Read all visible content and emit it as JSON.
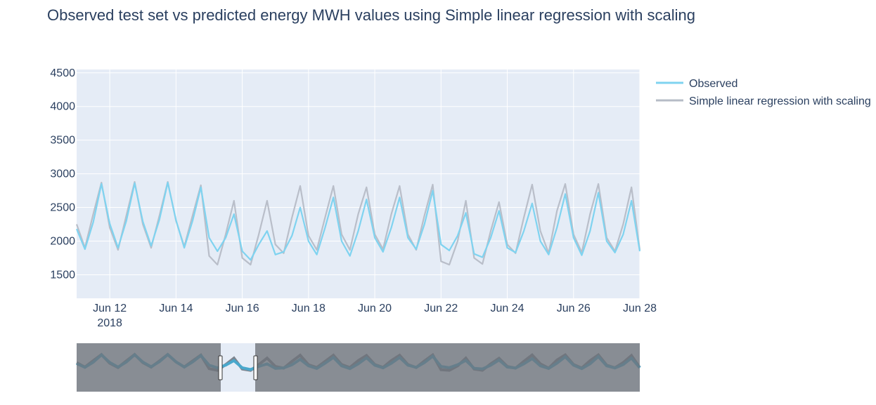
{
  "chart_data": {
    "type": "line",
    "title": "Observed test set vs predicted energy MWH values using Simple linear regression with scaling",
    "xlabel": "",
    "ylabel": "",
    "x_range": [
      "2018-06-11 00:00",
      "2018-06-28 00:00"
    ],
    "ylim": [
      1150,
      4550
    ],
    "y_ticks": [
      1500,
      2000,
      2500,
      3000,
      3500,
      4000,
      4500
    ],
    "x_ticks": [
      {
        "date": "2018-06-12",
        "label": "Jun 12",
        "sublabel": "2018"
      },
      {
        "date": "2018-06-14",
        "label": "Jun 14",
        "sublabel": ""
      },
      {
        "date": "2018-06-16",
        "label": "Jun 16",
        "sublabel": ""
      },
      {
        "date": "2018-06-18",
        "label": "Jun 18",
        "sublabel": ""
      },
      {
        "date": "2018-06-20",
        "label": "Jun 20",
        "sublabel": ""
      },
      {
        "date": "2018-06-22",
        "label": "Jun 22",
        "sublabel": ""
      },
      {
        "date": "2018-06-24",
        "label": "Jun 24",
        "sublabel": ""
      },
      {
        "date": "2018-06-26",
        "label": "Jun 26",
        "sublabel": ""
      },
      {
        "date": "2018-06-28",
        "label": "Jun 28",
        "sublabel": ""
      }
    ],
    "grid": true,
    "legend_position": "top-right",
    "rangeslider": true,
    "series": [
      {
        "name": "Observed",
        "color": "#7fd3f0",
        "x": [
          "2018-06-11 00:00",
          "2018-06-11 06:00",
          "2018-06-11 12:00",
          "2018-06-11 18:00",
          "2018-06-12 00:00",
          "2018-06-12 06:00",
          "2018-06-12 12:00",
          "2018-06-12 18:00",
          "2018-06-13 00:00",
          "2018-06-13 06:00",
          "2018-06-13 12:00",
          "2018-06-13 18:00",
          "2018-06-14 00:00",
          "2018-06-14 06:00",
          "2018-06-14 12:00",
          "2018-06-14 18:00",
          "2018-06-15 00:00",
          "2018-06-15 06:00",
          "2018-06-15 12:00",
          "2018-06-15 18:00",
          "2018-06-16 00:00",
          "2018-06-16 06:00",
          "2018-06-16 12:00",
          "2018-06-16 18:00",
          "2018-06-17 00:00",
          "2018-06-17 06:00",
          "2018-06-17 12:00",
          "2018-06-17 18:00",
          "2018-06-18 00:00",
          "2018-06-18 06:00",
          "2018-06-18 12:00",
          "2018-06-18 18:00",
          "2018-06-19 00:00",
          "2018-06-19 06:00",
          "2018-06-19 12:00",
          "2018-06-19 18:00",
          "2018-06-20 00:00",
          "2018-06-20 06:00",
          "2018-06-20 12:00",
          "2018-06-20 18:00",
          "2018-06-21 00:00",
          "2018-06-21 06:00",
          "2018-06-21 12:00",
          "2018-06-21 18:00",
          "2018-06-22 00:00",
          "2018-06-22 06:00",
          "2018-06-22 12:00",
          "2018-06-22 18:00",
          "2018-06-23 00:00",
          "2018-06-23 06:00",
          "2018-06-23 12:00",
          "2018-06-23 18:00",
          "2018-06-24 00:00",
          "2018-06-24 06:00",
          "2018-06-24 12:00",
          "2018-06-24 18:00",
          "2018-06-25 00:00",
          "2018-06-25 06:00",
          "2018-06-25 12:00",
          "2018-06-25 18:00",
          "2018-06-26 00:00",
          "2018-06-26 06:00",
          "2018-06-26 12:00",
          "2018-06-26 18:00",
          "2018-06-27 00:00",
          "2018-06-27 06:00",
          "2018-06-27 12:00",
          "2018-06-27 18:00",
          "2018-06-28 00:00"
        ],
        "values": [
          2180,
          1880,
          2280,
          2850,
          2260,
          1900,
          2300,
          2860,
          2290,
          1930,
          2320,
          2870,
          2310,
          1900,
          2300,
          2800,
          2050,
          1850,
          2050,
          2400,
          1850,
          1720,
          1950,
          2150,
          1800,
          1840,
          2080,
          2500,
          2000,
          1800,
          2200,
          2650,
          2000,
          1780,
          2150,
          2620,
          2050,
          1840,
          2200,
          2650,
          2050,
          1880,
          2250,
          2750,
          1950,
          1860,
          2080,
          2420,
          1810,
          1760,
          2050,
          2450,
          1900,
          1830,
          2150,
          2560,
          2000,
          1800,
          2200,
          2700,
          2050,
          1790,
          2150,
          2720,
          2000,
          1830,
          2100,
          2600,
          1850
        ]
      },
      {
        "name": "Simple linear regression with scaling",
        "color": "#b6bcc6",
        "x": [
          "2018-06-11 00:00",
          "2018-06-11 06:00",
          "2018-06-11 12:00",
          "2018-06-11 18:00",
          "2018-06-12 00:00",
          "2018-06-12 06:00",
          "2018-06-12 12:00",
          "2018-06-12 18:00",
          "2018-06-13 00:00",
          "2018-06-13 06:00",
          "2018-06-13 12:00",
          "2018-06-13 18:00",
          "2018-06-14 00:00",
          "2018-06-14 06:00",
          "2018-06-14 12:00",
          "2018-06-14 18:00",
          "2018-06-15 00:00",
          "2018-06-15 06:00",
          "2018-06-15 12:00",
          "2018-06-15 18:00",
          "2018-06-16 00:00",
          "2018-06-16 06:00",
          "2018-06-16 12:00",
          "2018-06-16 18:00",
          "2018-06-17 00:00",
          "2018-06-17 06:00",
          "2018-06-17 12:00",
          "2018-06-17 18:00",
          "2018-06-18 00:00",
          "2018-06-18 06:00",
          "2018-06-18 12:00",
          "2018-06-18 18:00",
          "2018-06-19 00:00",
          "2018-06-19 06:00",
          "2018-06-19 12:00",
          "2018-06-19 18:00",
          "2018-06-20 00:00",
          "2018-06-20 06:00",
          "2018-06-20 12:00",
          "2018-06-20 18:00",
          "2018-06-21 00:00",
          "2018-06-21 06:00",
          "2018-06-21 12:00",
          "2018-06-21 18:00",
          "2018-06-22 00:00",
          "2018-06-22 06:00",
          "2018-06-22 12:00",
          "2018-06-22 18:00",
          "2018-06-23 00:00",
          "2018-06-23 06:00",
          "2018-06-23 12:00",
          "2018-06-23 18:00",
          "2018-06-24 00:00",
          "2018-06-24 06:00",
          "2018-06-24 12:00",
          "2018-06-24 18:00",
          "2018-06-25 00:00",
          "2018-06-25 06:00",
          "2018-06-25 12:00",
          "2018-06-25 18:00",
          "2018-06-26 00:00",
          "2018-06-26 06:00",
          "2018-06-26 12:00",
          "2018-06-26 18:00",
          "2018-06-27 00:00",
          "2018-06-27 06:00",
          "2018-06-27 12:00",
          "2018-06-27 18:00",
          "2018-06-28 00:00"
        ],
        "values": [
          2250,
          1900,
          2400,
          2870,
          2200,
          1870,
          2380,
          2880,
          2250,
          1900,
          2380,
          2880,
          2300,
          1920,
          2380,
          2830,
          1780,
          1650,
          2100,
          2600,
          1750,
          1650,
          2100,
          2600,
          1950,
          1820,
          2350,
          2820,
          2080,
          1870,
          2350,
          2820,
          2100,
          1870,
          2400,
          2800,
          2100,
          1880,
          2400,
          2820,
          2100,
          1870,
          2380,
          2840,
          1700,
          1650,
          2000,
          2600,
          1750,
          1660,
          2150,
          2580,
          1950,
          1820,
          2350,
          2840,
          2150,
          1820,
          2450,
          2850,
          2100,
          1830,
          2400,
          2850,
          2050,
          1850,
          2250,
          2800,
          1870
        ]
      }
    ]
  }
}
